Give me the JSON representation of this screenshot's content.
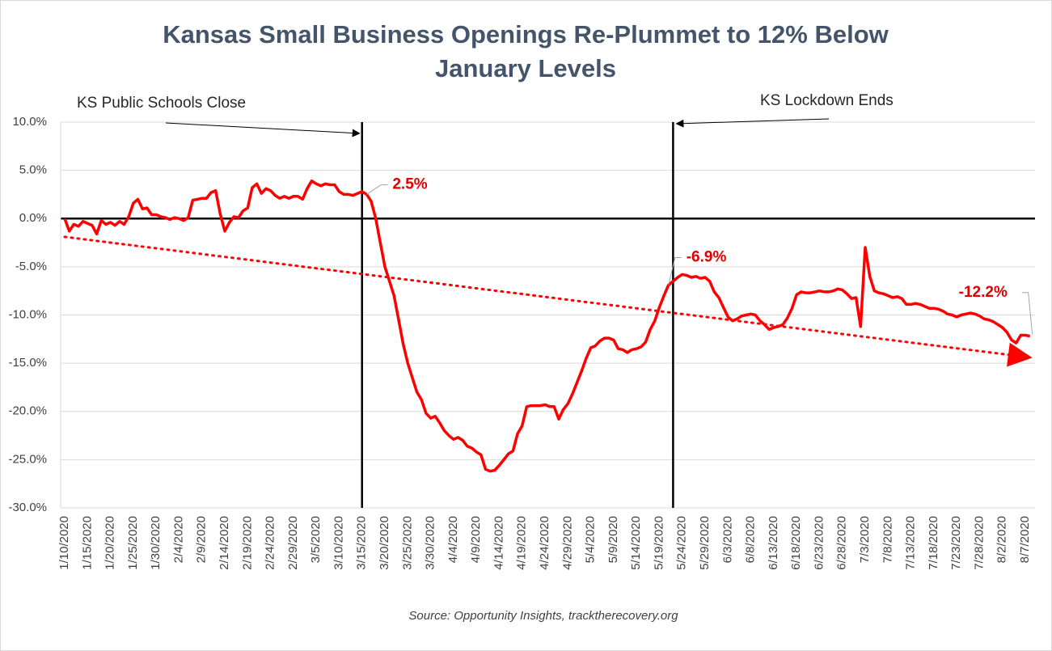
{
  "chart_data": {
    "type": "line",
    "title": "Kansas Small Business Openings Re-Plummet to 12% Below",
    "title_line2": "January Levels",
    "source": "Source: Opportunity Insights, tracktherecovery.org",
    "categories": [
      "1/10/2020",
      null,
      null,
      null,
      null,
      "1/15/2020",
      null,
      null,
      null,
      null,
      "1/20/2020",
      null,
      null,
      null,
      null,
      "1/25/2020",
      null,
      null,
      null,
      null,
      "1/30/2020",
      null,
      null,
      null,
      null,
      "2/4/2020",
      null,
      null,
      null,
      null,
      "2/9/2020",
      null,
      null,
      null,
      null,
      "2/14/2020",
      null,
      null,
      null,
      null,
      "2/19/2020",
      null,
      null,
      null,
      null,
      "2/24/2020",
      null,
      null,
      null,
      null,
      "2/29/2020",
      null,
      null,
      null,
      null,
      "3/5/2020",
      null,
      null,
      null,
      null,
      "3/10/2020",
      null,
      null,
      null,
      null,
      "3/15/2020",
      null,
      null,
      null,
      null,
      "3/20/2020",
      null,
      null,
      null,
      null,
      "3/25/2020",
      null,
      null,
      null,
      null,
      "3/30/2020",
      null,
      null,
      null,
      null,
      "4/4/2020",
      null,
      null,
      null,
      null,
      "4/9/2020",
      null,
      null,
      null,
      null,
      "4/14/2020",
      null,
      null,
      null,
      null,
      "4/19/2020",
      null,
      null,
      null,
      null,
      "4/24/2020",
      null,
      null,
      null,
      null,
      "4/29/2020",
      null,
      null,
      null,
      null,
      "5/4/2020",
      null,
      null,
      null,
      null,
      "5/9/2020",
      null,
      null,
      null,
      null,
      "5/14/2020",
      null,
      null,
      null,
      null,
      "5/19/2020",
      null,
      null,
      null,
      null,
      "5/24/2020",
      null,
      null,
      null,
      null,
      "5/29/2020",
      null,
      null,
      null,
      null,
      "6/3/2020",
      null,
      null,
      null,
      null,
      "6/8/2020",
      null,
      null,
      null,
      null,
      "6/13/2020",
      null,
      null,
      null,
      null,
      "6/18/2020",
      null,
      null,
      null,
      null,
      "6/23/2020",
      null,
      null,
      null,
      null,
      "6/28/2020",
      null,
      null,
      null,
      null,
      "7/3/2020",
      null,
      null,
      null,
      null,
      "7/8/2020",
      null,
      null,
      null,
      null,
      "7/13/2020",
      null,
      null,
      null,
      null,
      "7/18/2020",
      null,
      null,
      null,
      null,
      "7/23/2020",
      null,
      null,
      null,
      null,
      "7/28/2020",
      null,
      null,
      null,
      null,
      "8/2/2020",
      null,
      null,
      null,
      null,
      "8/7/2020",
      null
    ],
    "series": [
      {
        "name": "Small Business Openings",
        "color": "#ff0000",
        "values": [
          0,
          -1.3,
          -0.6,
          -0.8,
          -0.3,
          -0.5,
          -0.7,
          -1.6,
          -0.2,
          -0.6,
          -0.4,
          -0.7,
          -0.3,
          -0.6,
          0.2,
          1.6,
          2.0,
          1.0,
          1.1,
          0.4,
          0.4,
          0.2,
          0.1,
          -0.1,
          0.1,
          0,
          -0.2,
          0.1,
          1.9,
          2.0,
          2.1,
          2.1,
          2.7,
          2.9,
          0.5,
          -1.3,
          -0.4,
          0.2,
          0.1,
          0.8,
          1.1,
          3.2,
          3.6,
          2.6,
          3.1,
          2.9,
          2.4,
          2.1,
          2.3,
          2.1,
          2.3,
          2.3,
          2.0,
          3.1,
          3.9,
          3.6,
          3.4,
          3.6,
          3.5,
          3.5,
          2.8,
          2.5,
          2.5,
          2.4,
          2.6,
          2.8,
          2.5,
          1.8,
          0.0,
          -2.5,
          -5.0,
          -6.5,
          -8.0,
          -10.5,
          -13,
          -15,
          -16.5,
          -18,
          -18.8,
          -20.2,
          -20.7,
          -20.5,
          -21.2,
          -22,
          -22.5,
          -22.9,
          -22.7,
          -23.0,
          -23.6,
          -23.8,
          -24.2,
          -24.5,
          -26.0,
          -26.2,
          -26.1,
          -25.6,
          -25.0,
          -24.4,
          -24.1,
          -22.3,
          -21.5,
          -19.5,
          -19.4,
          -19.4,
          -19.4,
          -19.3,
          -19.5,
          -19.5,
          -20.8,
          -19.8,
          -19.2,
          -18.2,
          -17.0,
          -15.8,
          -14.5,
          -13.4,
          -13.2,
          -12.7,
          -12.4,
          -12.4,
          -12.6,
          -13.5,
          -13.6,
          -13.9,
          -13.6,
          -13.5,
          -13.3,
          -12.8,
          -11.5,
          -10.6,
          -9.2,
          -8.0,
          -6.9,
          -6.5,
          -6.1,
          -5.8,
          -5.9,
          -6.1,
          -6.0,
          -6.2,
          -6.1,
          -6.5,
          -7.6,
          -8.2,
          -9.2,
          -10.2,
          -10.6,
          -10.4,
          -10.1,
          -10.0,
          -9.9,
          -10.0,
          -10.6,
          -11.0,
          -11.5,
          -11.3,
          -11.2,
          -11.0,
          -10.3,
          -9.3,
          -7.9,
          -7.6,
          -7.7,
          -7.7,
          -7.6,
          -7.5,
          -7.6,
          -7.6,
          -7.5,
          -7.3,
          -7.4,
          -7.8,
          -8.3,
          -8.2,
          -11.2,
          -3.0,
          -6.0,
          -7.5,
          -7.7,
          -7.8,
          -8.0,
          -8.2,
          -8.1,
          -8.3,
          -8.9,
          -8.9,
          -8.8,
          -8.9,
          -9.1,
          -9.3,
          -9.3,
          -9.4,
          -9.6,
          -9.9,
          -10.0,
          -10.2,
          -10.0,
          -9.9,
          -9.8,
          -9.9,
          -10.1,
          -10.4,
          -10.5,
          -10.7,
          -11.0,
          -11.3,
          -11.8,
          -12.6,
          -12.9,
          -12.1,
          -12.1,
          -12.2
        ]
      }
    ],
    "data_labels": [
      {
        "index": 66,
        "label": "2.5%"
      },
      {
        "index": 132,
        "label": "-6.9%"
      },
      {
        "index": 211,
        "label": "-12.2%"
      }
    ],
    "trendline": {
      "color": "#ff0000",
      "values": [
        -1.9,
        -14.4
      ]
    },
    "annotations": [
      {
        "text": "KS Public Schools Close",
        "index": 65
      },
      {
        "text": "KS Lockdown Ends",
        "index": 133
      }
    ],
    "ylim": [
      -30,
      10
    ],
    "yticks": [
      {
        "value": -30,
        "label": "-30.0%"
      },
      {
        "value": -25,
        "label": "-25.0%"
      },
      {
        "value": -20,
        "label": "-20.0%"
      },
      {
        "value": -15,
        "label": "-15.0%"
      },
      {
        "value": -10,
        "label": "-10.0%"
      },
      {
        "value": -5,
        "label": "-5.0%"
      },
      {
        "value": 0,
        "label": "0.0%"
      },
      {
        "value": 5,
        "label": "5.0%"
      },
      {
        "value": 10,
        "label": "10.0%"
      }
    ],
    "grid": true
  }
}
